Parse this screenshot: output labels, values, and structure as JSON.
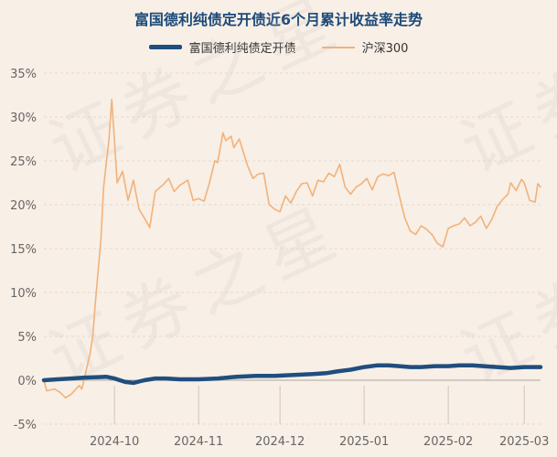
{
  "chart_data": {
    "type": "line",
    "title": "富国德利纯债定开债近6个月累计收益率走势",
    "xlabel": "",
    "ylabel": "",
    "ylim": [
      -5,
      35
    ],
    "yticks": [
      -5,
      0,
      5,
      10,
      15,
      20,
      25,
      30,
      35
    ],
    "ytick_labels": [
      "-5%",
      "0%",
      "5%",
      "10%",
      "15%",
      "20%",
      "25%",
      "30%",
      "35%"
    ],
    "xlim": [
      "2024-09-05",
      "2025-03-07"
    ],
    "xtick_labels": [
      "2024-10",
      "2024-11",
      "2024-12",
      "2025-01",
      "2025-02",
      "2025-03"
    ],
    "xtick_dates": [
      "2024-10-01",
      "2024-11-01",
      "2024-12-01",
      "2025-01-01",
      "2025-02-01",
      "2025-03-01"
    ],
    "grid": true,
    "legend_position": "top",
    "watermark": "证券之星",
    "series": [
      {
        "name": "富国德利纯债定开债",
        "color": "#1f4e7e",
        "points": [
          [
            "2024-09-05",
            0.0
          ],
          [
            "2024-09-10",
            0.1
          ],
          [
            "2024-09-15",
            0.2
          ],
          [
            "2024-09-20",
            0.3
          ],
          [
            "2024-09-25",
            0.35
          ],
          [
            "2024-09-28",
            0.4
          ],
          [
            "2024-10-01",
            0.2
          ],
          [
            "2024-10-05",
            -0.2
          ],
          [
            "2024-10-08",
            -0.3
          ],
          [
            "2024-10-12",
            0.0
          ],
          [
            "2024-10-16",
            0.2
          ],
          [
            "2024-10-20",
            0.2
          ],
          [
            "2024-10-25",
            0.1
          ],
          [
            "2024-11-01",
            0.1
          ],
          [
            "2024-11-08",
            0.2
          ],
          [
            "2024-11-15",
            0.4
          ],
          [
            "2024-11-22",
            0.5
          ],
          [
            "2024-11-29",
            0.5
          ],
          [
            "2024-12-06",
            0.6
          ],
          [
            "2024-12-13",
            0.7
          ],
          [
            "2024-12-18",
            0.8
          ],
          [
            "2024-12-22",
            1.0
          ],
          [
            "2024-12-27",
            1.2
          ],
          [
            "2025-01-01",
            1.5
          ],
          [
            "2025-01-06",
            1.7
          ],
          [
            "2025-01-10",
            1.7
          ],
          [
            "2025-01-14",
            1.6
          ],
          [
            "2025-01-18",
            1.5
          ],
          [
            "2025-01-22",
            1.5
          ],
          [
            "2025-01-27",
            1.6
          ],
          [
            "2025-02-01",
            1.6
          ],
          [
            "2025-02-05",
            1.7
          ],
          [
            "2025-02-10",
            1.7
          ],
          [
            "2025-02-14",
            1.6
          ],
          [
            "2025-02-19",
            1.5
          ],
          [
            "2025-02-24",
            1.4
          ],
          [
            "2025-03-01",
            1.5
          ],
          [
            "2025-03-04",
            1.5
          ],
          [
            "2025-03-07",
            1.5
          ]
        ]
      },
      {
        "name": "沪深300",
        "color": "#f2b27a",
        "points": [
          [
            "2024-09-05",
            0.0
          ],
          [
            "2024-09-06",
            -1.2
          ],
          [
            "2024-09-09",
            -1.0
          ],
          [
            "2024-09-11",
            -1.4
          ],
          [
            "2024-09-13",
            -2.0
          ],
          [
            "2024-09-15",
            -1.6
          ],
          [
            "2024-09-18",
            -0.6
          ],
          [
            "2024-09-19",
            -1.0
          ],
          [
            "2024-09-22",
            3.0
          ],
          [
            "2024-09-23",
            5.0
          ],
          [
            "2024-09-24",
            9.0
          ],
          [
            "2024-09-26",
            16.0
          ],
          [
            "2024-09-27",
            22.0
          ],
          [
            "2024-09-29",
            27.5
          ],
          [
            "2024-09-30",
            32.0
          ],
          [
            "2024-10-02",
            22.5
          ],
          [
            "2024-10-04",
            23.8
          ],
          [
            "2024-10-06",
            20.5
          ],
          [
            "2024-10-08",
            22.8
          ],
          [
            "2024-10-10",
            19.5
          ],
          [
            "2024-10-12",
            18.5
          ],
          [
            "2024-10-14",
            17.4
          ],
          [
            "2024-10-16",
            21.5
          ],
          [
            "2024-10-19",
            22.3
          ],
          [
            "2024-10-21",
            23.0
          ],
          [
            "2024-10-23",
            21.5
          ],
          [
            "2024-10-25",
            22.2
          ],
          [
            "2024-10-28",
            22.8
          ],
          [
            "2024-10-30",
            20.5
          ],
          [
            "2024-11-01",
            20.7
          ],
          [
            "2024-11-03",
            20.4
          ],
          [
            "2024-11-05",
            22.5
          ],
          [
            "2024-11-07",
            25.0
          ],
          [
            "2024-11-08",
            24.8
          ],
          [
            "2024-11-10",
            28.2
          ],
          [
            "2024-11-11",
            27.3
          ],
          [
            "2024-11-13",
            27.8
          ],
          [
            "2024-11-14",
            26.5
          ],
          [
            "2024-11-16",
            27.5
          ],
          [
            "2024-11-19",
            24.5
          ],
          [
            "2024-11-21",
            23.0
          ],
          [
            "2024-11-23",
            23.5
          ],
          [
            "2024-11-25",
            23.6
          ],
          [
            "2024-11-27",
            20.0
          ],
          [
            "2024-11-29",
            19.5
          ],
          [
            "2024-12-01",
            19.2
          ],
          [
            "2024-12-03",
            21.0
          ],
          [
            "2024-12-05",
            20.2
          ],
          [
            "2024-12-07",
            21.5
          ],
          [
            "2024-12-09",
            22.4
          ],
          [
            "2024-12-11",
            22.5
          ],
          [
            "2024-12-13",
            21.0
          ],
          [
            "2024-12-15",
            22.8
          ],
          [
            "2024-12-17",
            22.6
          ],
          [
            "2024-12-19",
            23.6
          ],
          [
            "2024-12-21",
            23.2
          ],
          [
            "2024-12-23",
            24.6
          ],
          [
            "2024-12-25",
            22.0
          ],
          [
            "2024-12-27",
            21.2
          ],
          [
            "2024-12-29",
            22.0
          ],
          [
            "2024-12-31",
            22.4
          ],
          [
            "2025-01-02",
            23.0
          ],
          [
            "2025-01-04",
            21.7
          ],
          [
            "2025-01-06",
            23.2
          ],
          [
            "2025-01-08",
            23.5
          ],
          [
            "2025-01-10",
            23.3
          ],
          [
            "2025-01-12",
            23.7
          ],
          [
            "2025-01-14",
            21.0
          ],
          [
            "2025-01-16",
            18.5
          ],
          [
            "2025-01-18",
            17.0
          ],
          [
            "2025-01-20",
            16.6
          ],
          [
            "2025-01-22",
            17.6
          ],
          [
            "2025-01-24",
            17.2
          ],
          [
            "2025-01-26",
            16.6
          ],
          [
            "2025-01-28",
            15.6
          ],
          [
            "2025-01-30",
            15.2
          ],
          [
            "2025-02-01",
            17.3
          ],
          [
            "2025-02-03",
            17.6
          ],
          [
            "2025-02-05",
            17.8
          ],
          [
            "2025-02-07",
            18.5
          ],
          [
            "2025-02-09",
            17.6
          ],
          [
            "2025-02-11",
            18.0
          ],
          [
            "2025-02-13",
            18.7
          ],
          [
            "2025-02-15",
            17.3
          ],
          [
            "2025-02-17",
            18.3
          ],
          [
            "2025-02-19",
            19.8
          ],
          [
            "2025-02-21",
            20.6
          ],
          [
            "2025-02-23",
            21.2
          ],
          [
            "2025-02-24",
            22.5
          ],
          [
            "2025-02-26",
            21.6
          ],
          [
            "2025-02-28",
            22.9
          ],
          [
            "2025-03-01",
            22.5
          ],
          [
            "2025-03-03",
            20.5
          ],
          [
            "2025-03-04",
            20.4
          ],
          [
            "2025-03-05",
            20.3
          ],
          [
            "2025-03-06",
            22.4
          ],
          [
            "2025-03-07",
            22.0
          ]
        ]
      }
    ]
  }
}
